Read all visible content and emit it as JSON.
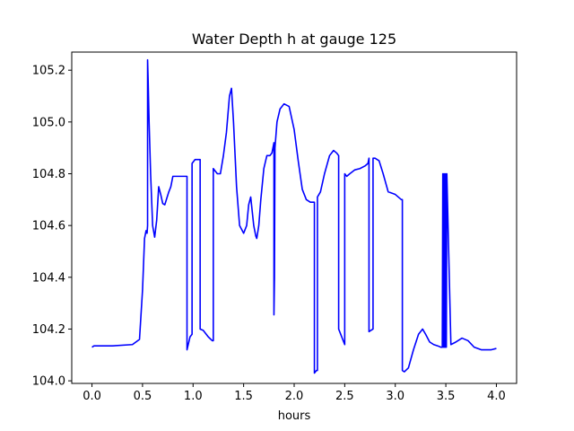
{
  "chart_data": {
    "type": "line",
    "title": "Water Depth h at gauge 125",
    "xlabel": "hours",
    "ylabel": "",
    "xlim": [
      -0.2,
      4.2
    ],
    "ylim": [
      103.99,
      105.27
    ],
    "xticks": [
      "0.0",
      "0.5",
      "1.0",
      "1.5",
      "2.0",
      "2.5",
      "3.0",
      "3.5",
      "4.0"
    ],
    "yticks": [
      "104.0",
      "104.2",
      "104.4",
      "104.6",
      "104.8",
      "105.0",
      "105.2"
    ],
    "grid": false,
    "series": [
      {
        "color": "#0000ff",
        "x": [
          0.0,
          0.02,
          0.2,
          0.4,
          0.47,
          0.5,
          0.52,
          0.535,
          0.545,
          0.55,
          0.55,
          0.555,
          0.565,
          0.58,
          0.6,
          0.62,
          0.64,
          0.66,
          0.68,
          0.7,
          0.72,
          0.74,
          0.76,
          0.78,
          0.8,
          0.85,
          0.9,
          0.94,
          0.94,
          0.97,
          0.99,
          0.99,
          1.02,
          1.06,
          1.07,
          1.07,
          1.1,
          1.15,
          1.19,
          1.2,
          1.2,
          1.24,
          1.27,
          1.3,
          1.33,
          1.36,
          1.38,
          1.4,
          1.43,
          1.46,
          1.5,
          1.53,
          1.55,
          1.57,
          1.6,
          1.62,
          1.63,
          1.65,
          1.67,
          1.7,
          1.73,
          1.76,
          1.78,
          1.8,
          1.8,
          1.805,
          1.81,
          1.83,
          1.86,
          1.9,
          1.95,
          2.0,
          2.04,
          2.08,
          2.12,
          2.16,
          2.2,
          2.2,
          2.22,
          2.23,
          2.23,
          2.26,
          2.3,
          2.35,
          2.39,
          2.42,
          2.44,
          2.44,
          2.5,
          2.5,
          2.52,
          2.55,
          2.6,
          2.65,
          2.7,
          2.73,
          2.74,
          2.74,
          2.78,
          2.78,
          2.8,
          2.84,
          2.88,
          2.93,
          3.0,
          3.06,
          3.07,
          3.07,
          3.09,
          3.13,
          3.18,
          3.23,
          3.27,
          3.3,
          3.34,
          3.38,
          3.42,
          3.45,
          3.465,
          3.47,
          3.475,
          3.48,
          3.485,
          3.49,
          3.495,
          3.5,
          3.505,
          3.51,
          3.55,
          3.6,
          3.66,
          3.72,
          3.78,
          3.85,
          3.9,
          3.95,
          4.0
        ],
        "y": [
          104.13,
          104.135,
          104.135,
          104.14,
          104.16,
          104.35,
          104.55,
          104.58,
          104.57,
          104.6,
          105.24,
          105.17,
          105.0,
          104.8,
          104.6,
          104.555,
          104.62,
          104.75,
          104.72,
          104.685,
          104.68,
          104.705,
          104.73,
          104.75,
          104.79,
          104.79,
          104.79,
          104.79,
          104.12,
          104.17,
          104.18,
          104.84,
          104.855,
          104.855,
          104.855,
          104.2,
          104.195,
          104.17,
          104.155,
          104.155,
          104.82,
          104.8,
          104.8,
          104.87,
          104.96,
          105.1,
          105.13,
          105.0,
          104.75,
          104.6,
          104.57,
          104.6,
          104.68,
          104.71,
          104.6,
          104.56,
          104.55,
          104.6,
          104.7,
          104.82,
          104.87,
          104.87,
          104.88,
          104.92,
          104.255,
          104.4,
          104.9,
          105.0,
          105.05,
          105.07,
          105.06,
          104.97,
          104.85,
          104.74,
          104.7,
          104.69,
          104.69,
          104.03,
          104.04,
          104.04,
          104.71,
          104.73,
          104.8,
          104.87,
          104.89,
          104.88,
          104.87,
          104.2,
          104.14,
          104.8,
          104.79,
          104.8,
          104.815,
          104.82,
          104.83,
          104.84,
          104.86,
          104.19,
          104.2,
          104.86,
          104.86,
          104.85,
          104.8,
          104.73,
          104.72,
          104.7,
          104.7,
          104.04,
          104.035,
          104.05,
          104.12,
          104.18,
          104.2,
          104.18,
          104.15,
          104.14,
          104.135,
          104.13,
          104.13,
          104.8,
          104.13,
          104.8,
          104.13,
          104.8,
          104.13,
          104.8,
          104.13,
          104.8,
          104.14,
          104.15,
          104.165,
          104.155,
          104.13,
          104.12,
          104.12,
          104.12,
          104.125
        ]
      }
    ]
  }
}
